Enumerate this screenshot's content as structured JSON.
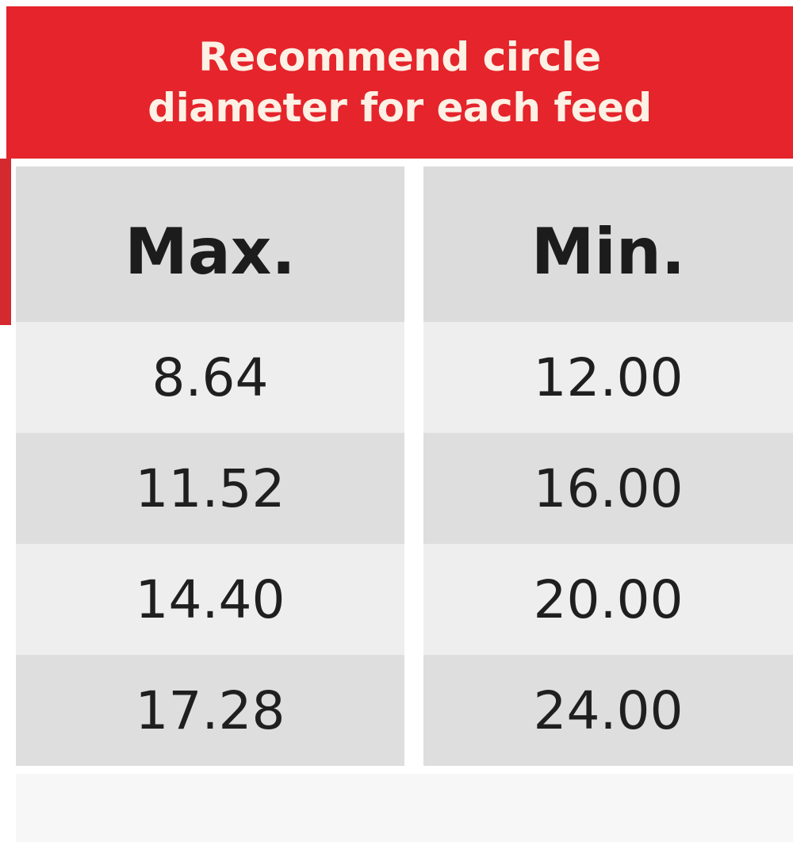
{
  "header": {
    "title": "Recommend circle diameter for each feed"
  },
  "table": {
    "columns": [
      "Max.",
      "Min."
    ],
    "rows": [
      [
        "8.64",
        "12.00"
      ],
      [
        "11.52",
        "16.00"
      ],
      [
        "14.40",
        "20.00"
      ],
      [
        "17.28",
        "24.00"
      ]
    ]
  },
  "colors": {
    "header_background": "#e5242b",
    "header_text": "#fdf0e4",
    "row_light": "#eeeeee",
    "row_dark": "#dedede",
    "column_header_background": "#dcdcdc"
  }
}
